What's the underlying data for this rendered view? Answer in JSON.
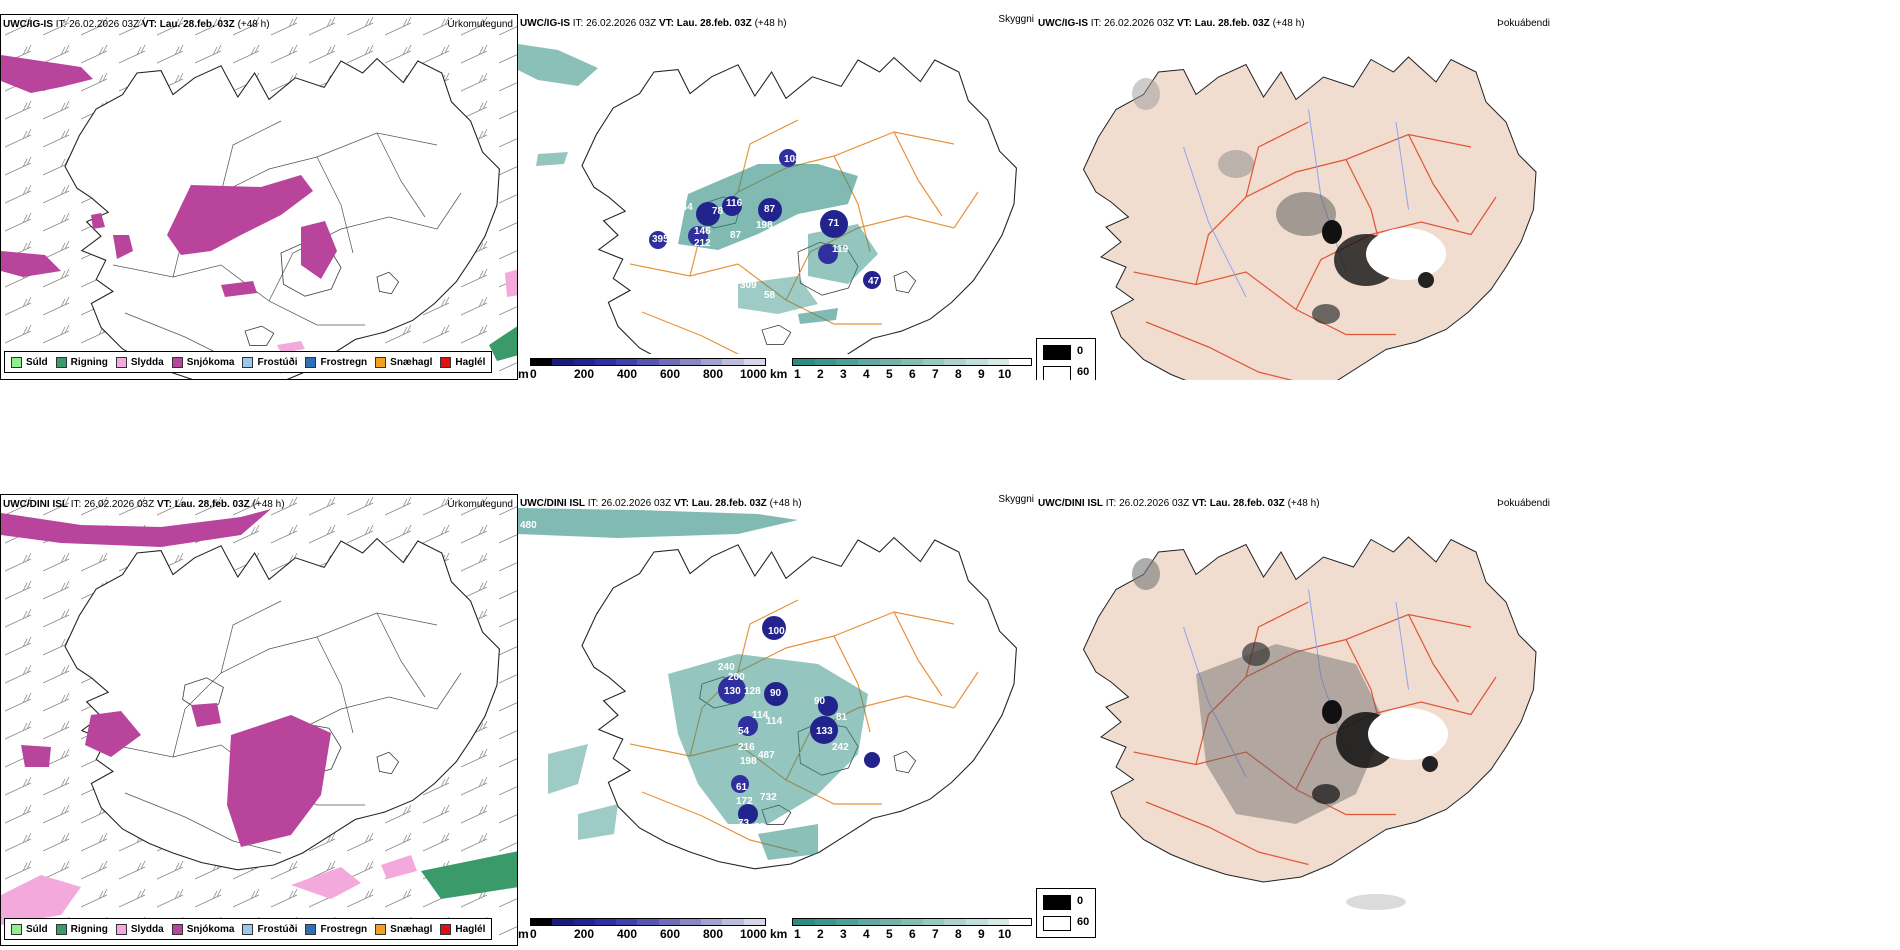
{
  "rows": [
    {
      "model": "UWC/IG-IS",
      "it": "IT: 26.02.2026 03Z",
      "vt_label": "VT:",
      "vt": "Lau. 28.feb. 03Z",
      "lead": "(+48 h)",
      "cloud_base_numbers": [
        "344",
        "78",
        "116",
        "87",
        "146",
        "212",
        "87",
        "198",
        "395",
        "108",
        "71",
        "119",
        "47",
        "309",
        "58"
      ]
    },
    {
      "model": "UWC/DINI ISL",
      "it": "IT: 26.02.2026 03Z",
      "vt_label": "VT:",
      "vt": "Lau. 28.feb. 03Z",
      "lead": "(+48 h)",
      "cloud_base_numbers": [
        "480",
        "240",
        "200",
        "90",
        "128",
        "114",
        "130",
        "54",
        "216",
        "487",
        "198",
        "133",
        "81",
        "90",
        "242",
        "114",
        "61",
        "172",
        "732",
        "73",
        "82",
        "100",
        "318"
      ]
    }
  ],
  "panels": {
    "precip": "Úrkomutegund",
    "cloud": "Skyggni",
    "fog": "Þokuábendi"
  },
  "precip_legend": [
    {
      "label": "Súld",
      "color": "#90ee90"
    },
    {
      "label": "Rigning",
      "color": "#3a9a6a"
    },
    {
      "label": "Slydda",
      "color": "#f3a9dc"
    },
    {
      "label": "Snjókoma",
      "color": "#b8449c"
    },
    {
      "label": "Frostúði",
      "color": "#9cc8ee"
    },
    {
      "label": "Frostregn",
      "color": "#2f6fb4"
    },
    {
      "label": "Snæhagl",
      "color": "#f2a020"
    },
    {
      "label": "Haglél",
      "color": "#e01010"
    }
  ],
  "cloudbase_bar": {
    "unit": "m",
    "ticks": [
      "0",
      "200",
      "400",
      "600",
      "800",
      "1000"
    ],
    "colors": [
      "#000000",
      "#1a1a7a",
      "#23238e",
      "#2f2f9e",
      "#4040a8",
      "#5656b0",
      "#6e6eb8",
      "#8888c4",
      "#a2a2d0",
      "#bcbcdc",
      "#d6d6ea"
    ]
  },
  "visibility_bar": {
    "unit": "km",
    "ticks": [
      "1",
      "2",
      "3",
      "4",
      "5",
      "6",
      "7",
      "8",
      "9",
      "10"
    ],
    "colors": [
      "#2b8c80",
      "#3c968b",
      "#4d9f95",
      "#5fa9a0",
      "#71b3ab",
      "#84bdb6",
      "#98c8c2",
      "#acd3ce",
      "#c1deda",
      "#d7e9e7",
      "#ffffff"
    ]
  },
  "fog_legend": [
    {
      "label": "0",
      "color": "#000000"
    },
    {
      "label": "60",
      "color": "#ffffff"
    }
  ],
  "colors": {
    "land_fog": "#f1ddd0",
    "roads_orange": "#e8933e",
    "roads_red": "#e0573a",
    "rivers_blue": "#8fa4ee",
    "snow_magenta": "#b8449c"
  }
}
